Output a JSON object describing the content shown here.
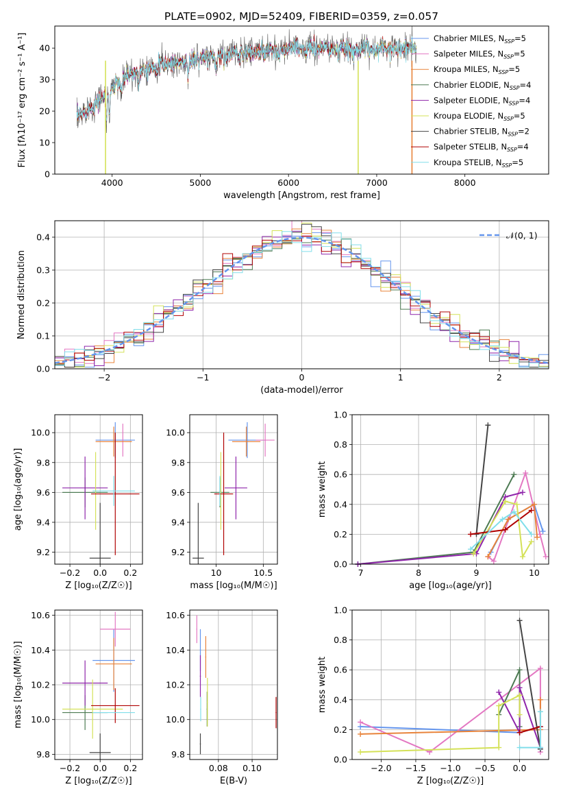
{
  "figure_title": "PLATE=0902, MJD=52409, FIBERID=0359, z=0.057",
  "colors": {
    "Chabrier MILES": "#6495ed",
    "Salpeter MILES": "#e377c2",
    "Kroupa MILES": "#e8833a",
    "Chabrier ELODIE": "#4c7a52",
    "Salpeter ELODIE": "#8e24aa",
    "Kroupa ELODIE": "#d4e157",
    "Chabrier STELIB": "#444444",
    "Salpeter STELIB": "#b00000",
    "Kroupa STELIB": "#80deea"
  },
  "chart_data": [
    {
      "id": "spectrum",
      "type": "line",
      "xlabel": "wavelength [Angstrom, rest frame]",
      "ylabel": "Flux [f",
      "ylabel_full": "Flux [fλ10⁻¹⁷ erg cm⁻² s⁻¹ A⁻¹]",
      "xlim": [
        3350,
        8950
      ],
      "ylim": [
        0,
        47
      ],
      "xticks": [
        4000,
        5000,
        6000,
        7000,
        8000
      ],
      "yticks": [
        0,
        10,
        20,
        30,
        40
      ],
      "grid": false,
      "legend_position": "right",
      "continuum_x": [
        3600,
        3800,
        3950,
        4100,
        4300,
        4600,
        4900,
        5200,
        5500,
        5800,
        6100,
        6400,
        6700,
        7000,
        7300,
        7600,
        7900,
        8200,
        8500,
        8800
      ],
      "continuum_y": [
        18,
        22,
        26,
        30,
        33,
        35,
        36,
        37.5,
        38.5,
        39,
        40,
        40,
        39.5,
        40,
        40,
        40,
        38,
        37,
        35,
        33
      ],
      "legend": [
        {
          "label": "Chabrier MILES, N",
          "sub": "SSP",
          "n": "=5"
        },
        {
          "label": "Salpeter MILES, N",
          "sub": "SSP",
          "n": "=5"
        },
        {
          "label": "Kroupa MILES, N",
          "sub": "SSP",
          "n": "=5"
        },
        {
          "label": "Chabrier ELODIE, N",
          "sub": "SSP",
          "n": "=4"
        },
        {
          "label": "Salpeter ELODIE, N",
          "sub": "SSP",
          "n": "=4"
        },
        {
          "label": "Kroupa ELODIE, N",
          "sub": "SSP",
          "n": "=5"
        },
        {
          "label": "Chabrier STELIB, N",
          "sub": "SSP",
          "n": "=2"
        },
        {
          "label": "Salpeter STELIB, N",
          "sub": "SSP",
          "n": "=4"
        },
        {
          "label": "Kroupa STELIB, N",
          "sub": "SSP",
          "n": "=5"
        }
      ]
    },
    {
      "id": "residuals",
      "type": "area",
      "xlabel": "(data-model)/error",
      "ylabel": "Normed distribution",
      "xlim": [
        -2.5,
        2.5
      ],
      "ylim": [
        0,
        0.45
      ],
      "xticks": [
        -2,
        -1,
        0,
        1,
        2
      ],
      "xtick_labels": [
        "−2",
        "−1",
        "0",
        "1",
        "2"
      ],
      "yticks": [
        0.0,
        0.1,
        0.2,
        0.3,
        0.4
      ],
      "grid": true,
      "legend_label": "𝒩(0, 1)",
      "legend_position": "top-right",
      "bin_width": 0.1,
      "reference_curve": "normal(0,1)"
    },
    {
      "id": "age_vs_Z",
      "type": "scatter",
      "xlabel": "Z [log₁₀(Z/Z☉)]",
      "ylabel": "age  [log₁₀(age/yr)]",
      "xlim": [
        -0.3,
        0.28
      ],
      "ylim": [
        9.12,
        10.12
      ],
      "xticks": [
        -0.2,
        0.0,
        0.2
      ],
      "xtick_labels": [
        "−0.2",
        "0.0",
        "0.2"
      ],
      "yticks": [
        9.2,
        9.4,
        9.6,
        9.8,
        10.0
      ],
      "grid": true,
      "points": [
        {
          "model": "Chabrier MILES",
          "x": 0.1,
          "y": 9.95,
          "xerr": 0.13,
          "yerr": 0.12
        },
        {
          "model": "Salpeter MILES",
          "x": 0.15,
          "y": 9.95,
          "xerr": 0.0,
          "yerr": 0.11
        },
        {
          "model": "Kroupa MILES",
          "x": 0.09,
          "y": 9.94,
          "xerr": 0.12,
          "yerr": 0.1
        },
        {
          "model": "Chabrier ELODIE",
          "x": -0.1,
          "y": 9.6,
          "xerr": 0.15,
          "yerr": 0.1
        },
        {
          "model": "Salpeter ELODIE",
          "x": -0.1,
          "y": 9.63,
          "xerr": 0.15,
          "yerr": 0.21
        },
        {
          "model": "Kroupa ELODIE",
          "x": -0.03,
          "y": 9.61,
          "xerr": 0.0,
          "yerr": 0.26
        },
        {
          "model": "Chabrier STELIB",
          "x": 0.0,
          "y": 9.16,
          "xerr": 0.07,
          "yerr": 0.37
        },
        {
          "model": "Salpeter STELIB",
          "x": 0.1,
          "y": 9.59,
          "xerr": 0.16,
          "yerr": 0.41
        },
        {
          "model": "Kroupa STELIB",
          "x": 0.09,
          "y": 9.61,
          "xerr": 0.14,
          "yerr": 0.1
        }
      ]
    },
    {
      "id": "age_vs_mass",
      "type": "scatter",
      "xlabel": "mass [log₁₀(M/M☉)]",
      "ylabel": "",
      "xlim": [
        9.72,
        10.65
      ],
      "ylim": [
        9.12,
        10.12
      ],
      "xticks": [
        10.0,
        10.5
      ],
      "yticks": [
        9.2,
        9.4,
        9.6,
        9.8,
        10.0
      ],
      "grid": true,
      "points": [
        {
          "model": "Chabrier MILES",
          "x": 10.33,
          "y": 9.95,
          "xerr": 0.2,
          "yerr": 0.12
        },
        {
          "model": "Salpeter MILES",
          "x": 10.52,
          "y": 9.95,
          "xerr": 0.1,
          "yerr": 0.11
        },
        {
          "model": "Kroupa MILES",
          "x": 10.32,
          "y": 9.94,
          "xerr": 0.15,
          "yerr": 0.1
        },
        {
          "model": "Chabrier ELODIE",
          "x": 10.04,
          "y": 9.6,
          "xerr": 0.1,
          "yerr": 0.1
        },
        {
          "model": "Salpeter ELODIE",
          "x": 10.21,
          "y": 9.63,
          "xerr": 0.12,
          "yerr": 0.21
        },
        {
          "model": "Kroupa ELODIE",
          "x": 10.05,
          "y": 9.61,
          "xerr": 0.0,
          "yerr": 0.26
        },
        {
          "model": "Chabrier STELIB",
          "x": 9.81,
          "y": 9.16,
          "xerr": 0.06,
          "yerr": 0.37
        },
        {
          "model": "Salpeter STELIB",
          "x": 10.08,
          "y": 9.59,
          "xerr": 0.1,
          "yerr": 0.41
        },
        {
          "model": "Kroupa STELIB",
          "x": 10.04,
          "y": 9.61,
          "xerr": 0.0,
          "yerr": 0.1
        }
      ]
    },
    {
      "id": "weight_vs_age",
      "type": "line",
      "xlabel": "age  [log₁₀(age/yr)]",
      "ylabel": "mass weight",
      "xlim": [
        6.85,
        10.25
      ],
      "ylim": [
        0,
        1
      ],
      "xticks": [
        7,
        8,
        9,
        10
      ],
      "yticks": [
        0.0,
        0.2,
        0.4,
        0.6,
        0.8,
        1.0
      ],
      "grid": true,
      "series": [
        {
          "model": "Chabrier MILES",
          "x": [
            9.25,
            9.55,
            10.0,
            10.15
          ],
          "y": [
            0.08,
            0.3,
            0.4,
            0.22
          ]
        },
        {
          "model": "Salpeter MILES",
          "x": [
            9.2,
            9.3,
            9.85,
            10.1,
            10.2
          ],
          "y": [
            0.05,
            0.02,
            0.61,
            0.2,
            0.05
          ]
        },
        {
          "model": "Kroupa MILES",
          "x": [
            9.2,
            9.55,
            10.0,
            10.05
          ],
          "y": [
            0.05,
            0.3,
            0.4,
            0.18
          ]
        },
        {
          "model": "Chabrier ELODIE",
          "x": [
            6.95,
            8.95,
            9.65
          ],
          "y": [
            0.0,
            0.08,
            0.6
          ]
        },
        {
          "model": "Salpeter ELODIE",
          "x": [
            6.95,
            9.0,
            9.5,
            9.8
          ],
          "y": [
            0.0,
            0.07,
            0.45,
            0.48
          ]
        },
        {
          "model": "Kroupa ELODIE",
          "x": [
            8.95,
            9.5,
            9.7,
            9.8,
            9.95
          ],
          "y": [
            0.07,
            0.42,
            0.4,
            0.05,
            0.15
          ]
        },
        {
          "model": "Chabrier STELIB",
          "x": [
            9.0,
            9.2
          ],
          "y": [
            0.2,
            0.93
          ]
        },
        {
          "model": "Salpeter STELIB",
          "x": [
            8.9,
            9.5,
            9.95
          ],
          "y": [
            0.2,
            0.23,
            0.36
          ]
        },
        {
          "model": "Kroupa STELIB",
          "x": [
            8.9,
            9.45,
            9.65,
            9.95
          ],
          "y": [
            0.1,
            0.3,
            0.35,
            0.2
          ]
        }
      ]
    },
    {
      "id": "mass_vs_Z",
      "type": "scatter",
      "xlabel": "Z [log₁₀(Z/Z☉)]",
      "ylabel": "mass [log₁₀(M/M☉)]",
      "xlim": [
        -0.3,
        0.28
      ],
      "ylim": [
        9.77,
        10.63
      ],
      "xticks": [
        -0.2,
        0.0,
        0.2
      ],
      "xtick_labels": [
        "−0.2",
        "0.0",
        "0.2"
      ],
      "yticks": [
        9.8,
        10.0,
        10.2,
        10.4,
        10.6
      ],
      "grid": true,
      "points": [
        {
          "model": "Chabrier MILES",
          "x": 0.09,
          "y": 10.34,
          "xerr": 0.14,
          "yerr": 0.18
        },
        {
          "model": "Salpeter MILES",
          "x": 0.1,
          "y": 10.52,
          "xerr": 0.1,
          "yerr": 0.1
        },
        {
          "model": "Kroupa MILES",
          "x": 0.09,
          "y": 10.32,
          "xerr": 0.12,
          "yerr": 0.15
        },
        {
          "model": "Chabrier ELODIE",
          "x": -0.1,
          "y": 10.04,
          "xerr": 0.15,
          "yerr": 0.1
        },
        {
          "model": "Salpeter ELODIE",
          "x": -0.1,
          "y": 10.21,
          "xerr": 0.15,
          "yerr": 0.13
        },
        {
          "model": "Kroupa ELODIE",
          "x": -0.05,
          "y": 10.06,
          "xerr": 0.2,
          "yerr": 0.17
        },
        {
          "model": "Chabrier STELIB",
          "x": 0.0,
          "y": 9.81,
          "xerr": 0.07,
          "yerr": 0.11
        },
        {
          "model": "Salpeter STELIB",
          "x": 0.1,
          "y": 10.08,
          "xerr": 0.16,
          "yerr": 0.1
        },
        {
          "model": "Kroupa STELIB",
          "x": 0.09,
          "y": 10.04,
          "xerr": 0.14,
          "yerr": 0.0
        }
      ]
    },
    {
      "id": "mass_vs_ebv",
      "type": "scatter",
      "xlabel": "E(B-V)",
      "ylabel": "",
      "xlim": [
        0.063,
        0.115
      ],
      "ylim": [
        9.77,
        10.63
      ],
      "xticks": [
        0.08,
        0.1
      ],
      "xtick_labels": [
        "0.08",
        "0.10"
      ],
      "yticks": [
        9.8,
        10.0,
        10.2,
        10.4,
        10.6
      ],
      "grid": true,
      "points": [
        {
          "model": "Chabrier MILES",
          "x": 0.0693,
          "y": 10.4,
          "yerr": 0.12
        },
        {
          "model": "Salpeter MILES",
          "x": 0.0672,
          "y": 10.52,
          "yerr": 0.08
        },
        {
          "model": "Kroupa MILES",
          "x": 0.0725,
          "y": 10.36,
          "yerr": 0.12
        },
        {
          "model": "Chabrier ELODIE",
          "x": 0.0733,
          "y": 10.06,
          "yerr": 0.1
        },
        {
          "model": "Salpeter ELODIE",
          "x": 0.0693,
          "y": 10.25,
          "yerr": 0.12
        },
        {
          "model": "Kroupa ELODIE",
          "x": 0.0735,
          "y": 10.1,
          "yerr": 0.14
        },
        {
          "model": "Chabrier STELIB",
          "x": 0.0693,
          "y": 9.86,
          "yerr": 0.06
        },
        {
          "model": "Salpeter STELIB",
          "x": 0.1142,
          "y": 10.04,
          "yerr": 0.09
        },
        {
          "model": "Kroupa STELIB",
          "x": 0.0695,
          "y": 10.06,
          "yerr": 0.07
        }
      ]
    },
    {
      "id": "weight_vs_Z",
      "type": "line",
      "xlabel": "Z [log₁₀(Z/Z☉)]",
      "ylabel": "mass weight",
      "xlim": [
        -2.42,
        0.42
      ],
      "ylim": [
        0,
        1
      ],
      "xticks": [
        -2.0,
        -1.5,
        -1.0,
        -0.5,
        0.0
      ],
      "xtick_labels": [
        "−2.0",
        "−1.5",
        "−1.0",
        "−0.5",
        "0.0"
      ],
      "yticks": [
        0.0,
        0.2,
        0.4,
        0.6,
        0.8,
        1.0
      ],
      "grid": true,
      "series": [
        {
          "model": "Chabrier MILES",
          "x": [
            -2.3,
            0.0,
            0.3
          ],
          "y": [
            0.22,
            0.18,
            0.22
          ]
        },
        {
          "model": "Salpeter MILES",
          "x": [
            -2.3,
            -1.3,
            0.3,
            0.3
          ],
          "y": [
            0.25,
            0.05,
            0.61,
            0.05
          ]
        },
        {
          "model": "Kroupa MILES",
          "x": [
            -2.3,
            0.3,
            0.3
          ],
          "y": [
            0.17,
            0.2,
            0.4
          ]
        },
        {
          "model": "Chabrier ELODIE",
          "x": [
            -0.3,
            0.0,
            0.0
          ],
          "y": [
            0.3,
            0.6,
            0.22
          ]
        },
        {
          "model": "Salpeter ELODIE",
          "x": [
            -0.3,
            0.0,
            0.0,
            0.3
          ],
          "y": [
            0.45,
            0.18,
            0.48,
            0.08
          ]
        },
        {
          "model": "Kroupa ELODIE",
          "x": [
            -2.3,
            -0.3,
            -0.3,
            0.0,
            0.0
          ],
          "y": [
            0.05,
            0.08,
            0.36,
            0.43,
            0.3
          ]
        },
        {
          "model": "Chabrier STELIB",
          "x": [
            0.0,
            0.3
          ],
          "y": [
            0.93,
            0.07
          ]
        },
        {
          "model": "Salpeter STELIB",
          "x": [
            0.0,
            0.3
          ],
          "y": [
            0.18,
            0.22
          ]
        },
        {
          "model": "Kroupa STELIB",
          "x": [
            0.0,
            0.3,
            0.3
          ],
          "y": [
            0.08,
            0.08,
            0.32
          ]
        }
      ]
    }
  ]
}
